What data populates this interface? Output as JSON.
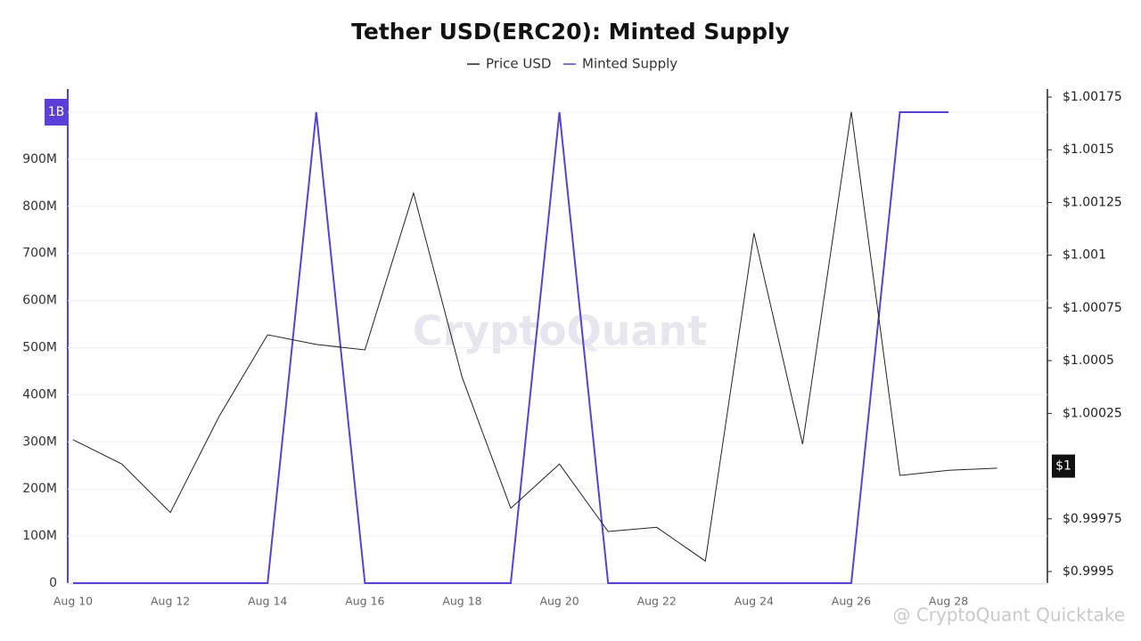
{
  "chart_data": {
    "type": "line",
    "title": "Tether USD(ERC20): Minted Supply",
    "watermark": "CryptoQuant",
    "footer": "@ CryptoQuant Quicktake",
    "categories": [
      "Aug 10",
      null,
      "Aug 12",
      null,
      "Aug 14",
      null,
      "Aug 16",
      null,
      "Aug 18",
      null,
      "Aug 20",
      null,
      "Aug 22",
      null,
      "Aug 24",
      null,
      "Aug 26",
      null,
      "Aug 28",
      null
    ],
    "series": [
      {
        "name": "Price USD",
        "color": "#222222",
        "axis": "y2",
        "values": [
          1.000125,
          1.00001,
          0.99978,
          1.000235,
          1.000623,
          1.000577,
          1.000551,
          1.001295,
          1.00042,
          0.9998,
          1.00001,
          0.99969,
          0.99971,
          0.99955,
          1.001105,
          1.000104,
          1.00168,
          0.999956,
          0.99998,
          0.99999
        ]
      },
      {
        "name": "Minted Supply",
        "color": "#5b3fd9",
        "values": [
          0,
          0,
          0,
          0,
          0,
          1000000000,
          0,
          0,
          0,
          0,
          1000000000,
          0,
          0,
          0,
          0,
          0,
          0,
          1000000000,
          1000000000,
          null
        ]
      }
    ],
    "ylim": [
      0,
      1000000000
    ],
    "yticks": [
      0,
      {
        "value": 100000000,
        "label": "100M"
      },
      {
        "value": 200000000,
        "label": "200M"
      },
      {
        "value": 300000000,
        "label": "300M"
      },
      {
        "value": 400000000,
        "label": "400M"
      },
      {
        "value": 500000000,
        "label": "500M"
      },
      {
        "value": 600000000,
        "label": "600M"
      },
      {
        "value": 700000000,
        "label": "700M"
      },
      {
        "value": 800000000,
        "label": "800M"
      },
      {
        "value": 900000000,
        "label": "900M"
      },
      {
        "value": 1000000000,
        "label": "1B"
      }
    ],
    "y2lim": [
      0.9995,
      1.00175
    ],
    "y2ticks": [
      {
        "value": 0.9995,
        "label": "$0.9995"
      },
      {
        "value": 0.99975,
        "label": "$0.99975"
      },
      {
        "value": 1.00025,
        "label": "$1.00025"
      },
      {
        "value": 1.0005,
        "label": "$1.0005"
      },
      {
        "value": 1.00075,
        "label": "$1.00075"
      },
      {
        "value": 1.001,
        "label": "$1.001"
      },
      {
        "value": 1.00125,
        "label": "$1.00125"
      },
      {
        "value": 1.0015,
        "label": "$1.0015"
      },
      {
        "value": 1.00175,
        "label": "$1.00175"
      }
    ],
    "y2_marker": {
      "value": 1,
      "label": "$1"
    },
    "grid": true
  }
}
